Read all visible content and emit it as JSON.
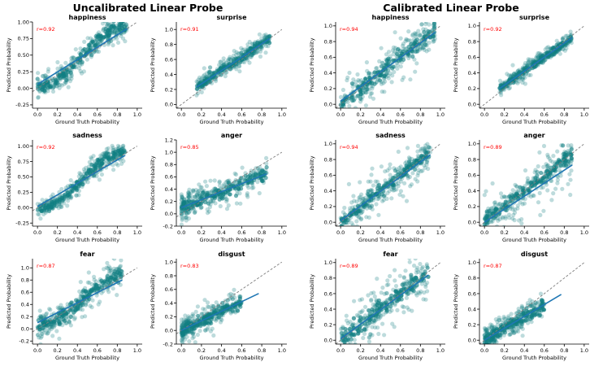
{
  "figure": {
    "left_title": "Uncalibrated Linear Probe",
    "right_title": "Calibrated Linear Probe",
    "x_axis_label": "Ground Truth Probability",
    "y_axis_label": "Predicted Probability",
    "colors": {
      "points": "#117f82",
      "fit_line": "#1f77b4",
      "diagonal": "#7f7f7f",
      "r_text": "#ff0000"
    }
  },
  "chart_data": [
    {
      "type": "scatter",
      "panel": "uncalibrated",
      "title": "happiness",
      "r_label": "r=0.92",
      "xlim": [
        0,
        1
      ],
      "xticks": [
        "0.0",
        "0.2",
        "0.4",
        "0.6",
        "0.8",
        "1.0"
      ],
      "ylim": [
        -0.3,
        1.0
      ],
      "yticks": [
        "-0.25",
        "0.00",
        "0.25",
        "0.50",
        "0.75",
        "1.00"
      ],
      "fit": {
        "x": [
          0,
          0.9
        ],
        "y": [
          0.06,
          0.9
        ]
      },
      "spread": 0.1,
      "x_range": [
        0,
        0.9
      ],
      "curve": "sigmoid"
    },
    {
      "type": "scatter",
      "panel": "uncalibrated",
      "title": "surprise",
      "r_label": "r=0.91",
      "xlim": [
        0,
        1
      ],
      "xticks": [
        "0.0",
        "0.2",
        "0.4",
        "0.6",
        "0.8",
        "1.0"
      ],
      "ylim": [
        -0.05,
        1.1
      ],
      "yticks": [
        "0.0",
        "0.2",
        "0.4",
        "0.6",
        "0.8",
        "1.0"
      ],
      "fit": {
        "x": [
          0.15,
          0.88
        ],
        "y": [
          0.23,
          0.88
        ]
      },
      "spread": 0.06,
      "x_range": [
        0.15,
        0.88
      ],
      "curve": "linear"
    },
    {
      "type": "scatter",
      "panel": "uncalibrated",
      "title": "sadness",
      "r_label": "r=0.92",
      "xlim": [
        0,
        1
      ],
      "xticks": [
        "0.0",
        "0.2",
        "0.4",
        "0.6",
        "0.8",
        "1.0"
      ],
      "ylim": [
        -0.3,
        1.1
      ],
      "yticks": [
        "-0.25",
        "0.00",
        "0.25",
        "0.50",
        "0.75",
        "1.00"
      ],
      "fit": {
        "x": [
          0,
          0.88
        ],
        "y": [
          0.02,
          0.85
        ]
      },
      "spread": 0.09,
      "x_range": [
        0,
        0.88
      ],
      "curve": "sigmoid"
    },
    {
      "type": "scatter",
      "panel": "uncalibrated",
      "title": "anger",
      "r_label": "r=0.85",
      "xlim": [
        0,
        1
      ],
      "xticks": [
        "0.0",
        "0.2",
        "0.4",
        "0.6",
        "0.8",
        "1.0"
      ],
      "ylim": [
        -0.2,
        1.2
      ],
      "yticks": [
        "-0.2",
        "0.0",
        "0.2",
        "0.4",
        "0.6",
        "0.8",
        "1.0",
        "1.2"
      ],
      "fit": {
        "x": [
          0,
          0.85
        ],
        "y": [
          0.1,
          0.65
        ]
      },
      "spread": 0.12,
      "x_range": [
        0,
        0.85
      ],
      "curve": "skewed"
    },
    {
      "type": "scatter",
      "panel": "uncalibrated",
      "title": "fear",
      "r_label": "r=0.87",
      "xlim": [
        0,
        1
      ],
      "xticks": [
        "0.0",
        "0.2",
        "0.4",
        "0.6",
        "0.8",
        "1.0"
      ],
      "ylim": [
        -0.25,
        1.15
      ],
      "yticks": [
        "-0.2",
        "0.0",
        "0.2",
        "0.4",
        "0.6",
        "0.8",
        "1.0"
      ],
      "fit": {
        "x": [
          0,
          0.85
        ],
        "y": [
          0.1,
          0.8
        ]
      },
      "spread": 0.13,
      "x_range": [
        0,
        0.85
      ],
      "curve": "sigmoid"
    },
    {
      "type": "scatter",
      "panel": "uncalibrated",
      "title": "disgust",
      "r_label": "r=0.83",
      "xlim": [
        0,
        1
      ],
      "xticks": [
        "0.0",
        "0.2",
        "0.4",
        "0.6",
        "0.8",
        "1.0"
      ],
      "ylim": [
        -0.2,
        1.05
      ],
      "yticks": [
        "-0.2",
        "0.0",
        "0.2",
        "0.4",
        "0.6",
        "0.8",
        "1.0"
      ],
      "fit": {
        "x": [
          0,
          0.77
        ],
        "y": [
          0.0,
          0.54
        ]
      },
      "spread": 0.09,
      "x_range": [
        0,
        0.6
      ],
      "curve": "skewed"
    },
    {
      "type": "scatter",
      "panel": "calibrated",
      "title": "happiness",
      "r_label": "r=0.94",
      "xlim": [
        0,
        1
      ],
      "xticks": [
        "0.0",
        "0.2",
        "0.4",
        "0.6",
        "0.8",
        "1.0"
      ],
      "ylim": [
        -0.05,
        1.05
      ],
      "yticks": [
        "0.0",
        "0.2",
        "0.4",
        "0.6",
        "0.8",
        "1.0"
      ],
      "fit": {
        "x": [
          0,
          0.95
        ],
        "y": [
          0.04,
          0.92
        ]
      },
      "spread": 0.1,
      "x_range": [
        0,
        0.95
      ],
      "curve": "banded"
    },
    {
      "type": "scatter",
      "panel": "calibrated",
      "title": "surprise",
      "r_label": "r=0.92",
      "xlim": [
        0,
        1
      ],
      "xticks": [
        "0.0",
        "0.2",
        "0.4",
        "0.6",
        "0.8",
        "1.0"
      ],
      "ylim": [
        -0.05,
        1.05
      ],
      "yticks": [
        "0.0",
        "0.2",
        "0.4",
        "0.6",
        "0.8",
        "1.0"
      ],
      "fit": {
        "x": [
          0.15,
          0.88
        ],
        "y": [
          0.2,
          0.85
        ]
      },
      "spread": 0.05,
      "x_range": [
        0.15,
        0.88
      ],
      "curve": "linear"
    },
    {
      "type": "scatter",
      "panel": "calibrated",
      "title": "sadness",
      "r_label": "r=0.94",
      "xlim": [
        0,
        1
      ],
      "xticks": [
        "0.0",
        "0.2",
        "0.4",
        "0.6",
        "0.8",
        "1.0"
      ],
      "ylim": [
        -0.05,
        1.05
      ],
      "yticks": [
        "0.0",
        "0.2",
        "0.4",
        "0.6",
        "0.8",
        "1.0"
      ],
      "fit": {
        "x": [
          0,
          0.9
        ],
        "y": [
          0.02,
          0.86
        ]
      },
      "spread": 0.08,
      "x_range": [
        0,
        0.9
      ],
      "curve": "banded"
    },
    {
      "type": "scatter",
      "panel": "calibrated",
      "title": "anger",
      "r_label": "r=0.89",
      "xlim": [
        0,
        1
      ],
      "xticks": [
        "0.0",
        "0.2",
        "0.4",
        "0.6",
        "0.8",
        "1.0"
      ],
      "ylim": [
        -0.05,
        1.05
      ],
      "yticks": [
        "0.0",
        "0.2",
        "0.4",
        "0.6",
        "0.8",
        "1.0"
      ],
      "fit": {
        "x": [
          0,
          0.88
        ],
        "y": [
          0.0,
          0.73
        ]
      },
      "spread": 0.1,
      "x_range": [
        0,
        0.88
      ],
      "curve": "banded"
    },
    {
      "type": "scatter",
      "panel": "calibrated",
      "title": "fear",
      "r_label": "r=0.89",
      "xlim": [
        0,
        1
      ],
      "xticks": [
        "0.0",
        "0.2",
        "0.4",
        "0.6",
        "0.8",
        "1.0"
      ],
      "ylim": [
        -0.05,
        1.05
      ],
      "yticks": [
        "0.0",
        "0.2",
        "0.4",
        "0.6",
        "0.8",
        "1.0"
      ],
      "fit": {
        "x": [
          0,
          0.88
        ],
        "y": [
          0.02,
          0.84
        ]
      },
      "spread": 0.12,
      "x_range": [
        0,
        0.88
      ],
      "curve": "banded"
    },
    {
      "type": "scatter",
      "panel": "calibrated",
      "title": "disgust",
      "r_label": "r=0.87",
      "xlim": [
        0,
        1
      ],
      "xticks": [
        "0.0",
        "0.2",
        "0.4",
        "0.6",
        "0.8",
        "1.0"
      ],
      "ylim": [
        -0.05,
        1.05
      ],
      "yticks": [
        "0.0",
        "0.2",
        "0.4",
        "0.6",
        "0.8",
        "1.0"
      ],
      "fit": {
        "x": [
          0,
          0.77
        ],
        "y": [
          0.0,
          0.59
        ]
      },
      "spread": 0.08,
      "x_range": [
        0,
        0.6
      ],
      "curve": "skewed"
    }
  ]
}
